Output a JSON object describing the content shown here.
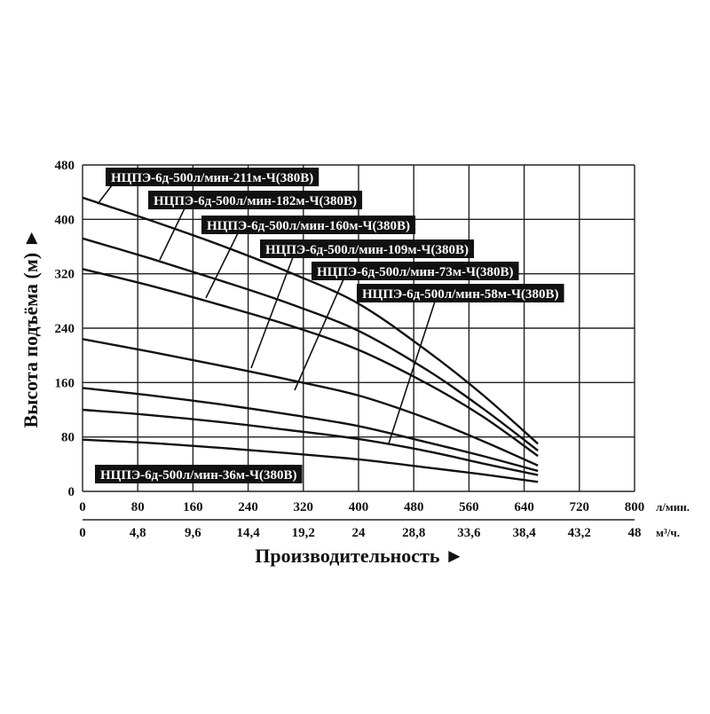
{
  "chart_data": {
    "type": "line",
    "ylabel": "Высота подъёма (м) ►",
    "xlabel": "Производительность ►",
    "x_unit_primary": "л/мин.",
    "x_unit_secondary": "м³/ч.",
    "xlim": [
      0,
      800
    ],
    "ylim": [
      0,
      480
    ],
    "grid": true,
    "x_ticks": [
      "0",
      "80",
      "160",
      "240",
      "320",
      "400",
      "480",
      "560",
      "640",
      "720",
      "800"
    ],
    "x2_ticks": [
      "0",
      "4,8",
      "9,6",
      "14,4",
      "19,2",
      "24",
      "28,8",
      "33,6",
      "38,4",
      "43,2",
      "48"
    ],
    "y_ticks": [
      "0",
      "80",
      "160",
      "240",
      "320",
      "400",
      "480"
    ],
    "series": [
      {
        "name": "НЦПЭ-6д-500л/мин-211м-Ч(380В)",
        "x": [
          0,
          100,
          200,
          300,
          400,
          500,
          580,
          660
        ],
        "y": [
          432,
          398,
          362,
          322,
          276,
          206,
          142,
          70
        ]
      },
      {
        "name": "НЦПЭ-6д-500л/мин-182м-Ч(380В)",
        "x": [
          0,
          100,
          200,
          300,
          400,
          500,
          580,
          660
        ],
        "y": [
          372,
          342,
          310,
          276,
          236,
          178,
          122,
          60
        ]
      },
      {
        "name": "НЦПЭ-6д-500л/мин-160м-Ч(380В)",
        "x": [
          0,
          100,
          200,
          300,
          400,
          500,
          580,
          660
        ],
        "y": [
          327,
          302,
          274,
          244,
          208,
          158,
          110,
          52
        ]
      },
      {
        "name": "НЦПЭ-6д-500л/мин-109м-Ч(380В)",
        "x": [
          0,
          100,
          200,
          300,
          400,
          500,
          580,
          660
        ],
        "y": [
          224,
          205,
          185,
          164,
          141,
          107,
          74,
          38
        ]
      },
      {
        "name": "НЦПЭ-6д-500л/мин-73м-Ч(380В)",
        "x": [
          0,
          100,
          200,
          300,
          400,
          500,
          580,
          660
        ],
        "y": [
          152,
          141,
          128,
          113,
          96,
          72,
          52,
          30
        ]
      },
      {
        "name": "НЦПЭ-6д-500л/мин-58м-Ч(380В)",
        "x": [
          0,
          100,
          200,
          300,
          400,
          500,
          580,
          660
        ],
        "y": [
          120,
          112,
          102,
          90,
          77,
          59,
          41,
          24
        ]
      },
      {
        "name": "НЦПЭ-6д-500л/мин-36м-Ч(380В)",
        "x": [
          0,
          100,
          200,
          300,
          400,
          500,
          580,
          660
        ],
        "y": [
          76,
          71,
          64,
          56,
          47,
          35,
          25,
          14
        ]
      }
    ]
  }
}
